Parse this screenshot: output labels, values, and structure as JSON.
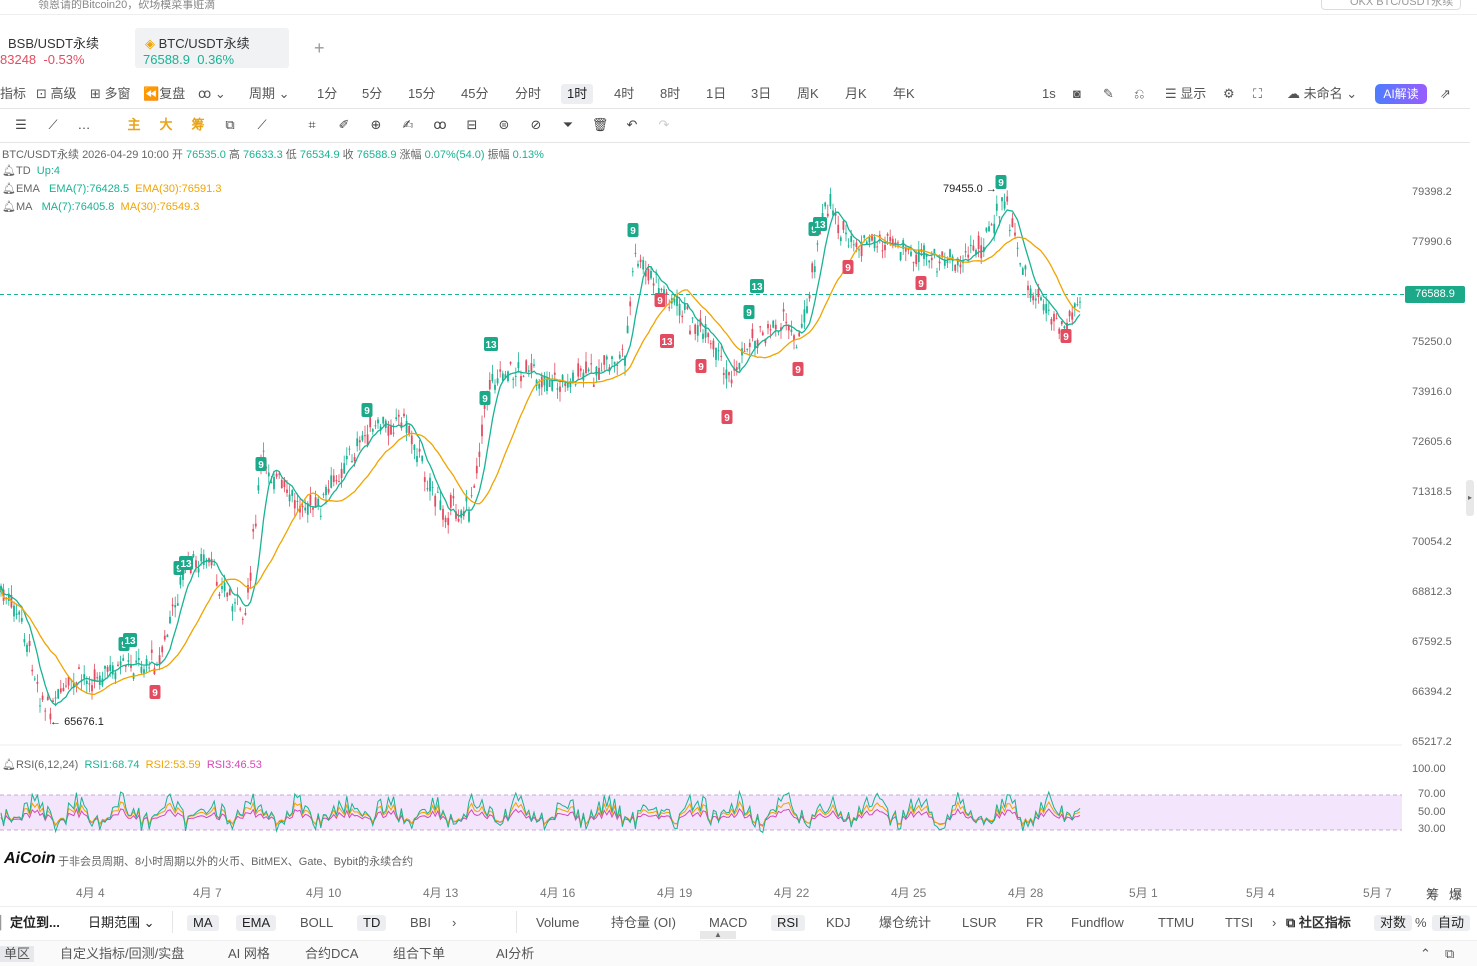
{
  "top": {
    "notice": "领恩请的Bitcoin20，砍场模菜事赃滴",
    "search": "OKX BTC/USDT永续"
  },
  "tabs": [
    {
      "name": "BSB/USDT永续",
      "price": "83248",
      "change": "-0.53%",
      "active": false
    },
    {
      "name": "BTC/USDT永续",
      "price": "76588.9",
      "change": "0.36%",
      "active": true
    }
  ],
  "add_tab": "+",
  "toolbar": {
    "left": [
      "指标",
      "高级",
      "多窗",
      "复盘",
      "周期"
    ],
    "periods": [
      "1分",
      "5分",
      "15分",
      "45分",
      "分时",
      "1时",
      "4时",
      "8时",
      "1日",
      "3日",
      "周K",
      "月K",
      "年K"
    ],
    "selected_period": "1时",
    "speed": "1s",
    "display": "显示",
    "layout": "未命名",
    "ai": "AI解读"
  },
  "draw_tools": {
    "main": "主",
    "big": "大",
    "chip": "筹"
  },
  "info": {
    "symbol": "BTC/USDT永续",
    "datetime": "2026-04-29 10:00",
    "open_l": "开",
    "open": "76535.0",
    "high_l": "高",
    "high": "76633.3",
    "low_l": "低",
    "low": "76534.9",
    "close_l": "收",
    "close": "76588.9",
    "chg_l": "涨幅",
    "chg": "0.07%(54.0)",
    "amp_l": "振幅",
    "amp": "0.13%"
  },
  "indicators": {
    "td_label": "TD",
    "td_val": "Up:4",
    "ema_label": "EMA",
    "ema7": "EMA(7):76428.5",
    "ema30": "EMA(30):76591.3",
    "ma_label": "MA",
    "ma7": "MA(7):76405.8",
    "ma30": "MA(30):76549.3",
    "rsi_label": "RSI(6,12,24)",
    "rsi1": "RSI1:68.74",
    "rsi2": "RSI2:53.59",
    "rsi3": "RSI3:46.53"
  },
  "price_axis": [
    "79398.2",
    "77990.6",
    "75250.0",
    "73916.0",
    "72605.6",
    "71318.5",
    "70054.2",
    "68812.3",
    "67592.5",
    "66394.2",
    "65217.2"
  ],
  "current_price": "76588.9",
  "annotations": {
    "high": "79455.0",
    "low": "65676.1"
  },
  "rsi_axis": [
    "100.00",
    "70.00",
    "50.00",
    "30.00"
  ],
  "notice_watermark": "AiCoin",
  "notice_text": "于非会员周期、8小时周期以外的火币、BitMEX、Gate、Bybit的永续合约",
  "x_axis": [
    "4月 4",
    "4月 7",
    "4月 10",
    "4月 13",
    "4月 16",
    "4月 19",
    "4月 22",
    "4月 25",
    "4月 28",
    "5月 1",
    "5月 4",
    "5月 7"
  ],
  "x_axis_right": [
    "筹",
    "爆"
  ],
  "bottom_bar": {
    "locate": "定位到...",
    "range": "日期范围",
    "main_inds": [
      "MA",
      "EMA",
      "BOLL",
      "TD",
      "BBI"
    ],
    "sub_inds": [
      "Volume",
      "持仓量 (OI)",
      "MACD",
      "RSI",
      "KDJ",
      "爆仓统计",
      "LSUR",
      "FR",
      "Fundflow",
      "TTMU",
      "TTSI"
    ],
    "community": "社区指标",
    "log": "对数",
    "pct": "%",
    "auto": "自动"
  },
  "footer": [
    "单区",
    "自定义指标/回测/实盘",
    "AI 网格",
    "合约DCA",
    "组合下单",
    "AI分析"
  ],
  "colors": {
    "up": "#18b394",
    "down": "#e34c60",
    "ema7": "#18b394",
    "ema30": "#f0a400",
    "rsi_band": "#f3e5fb"
  }
}
